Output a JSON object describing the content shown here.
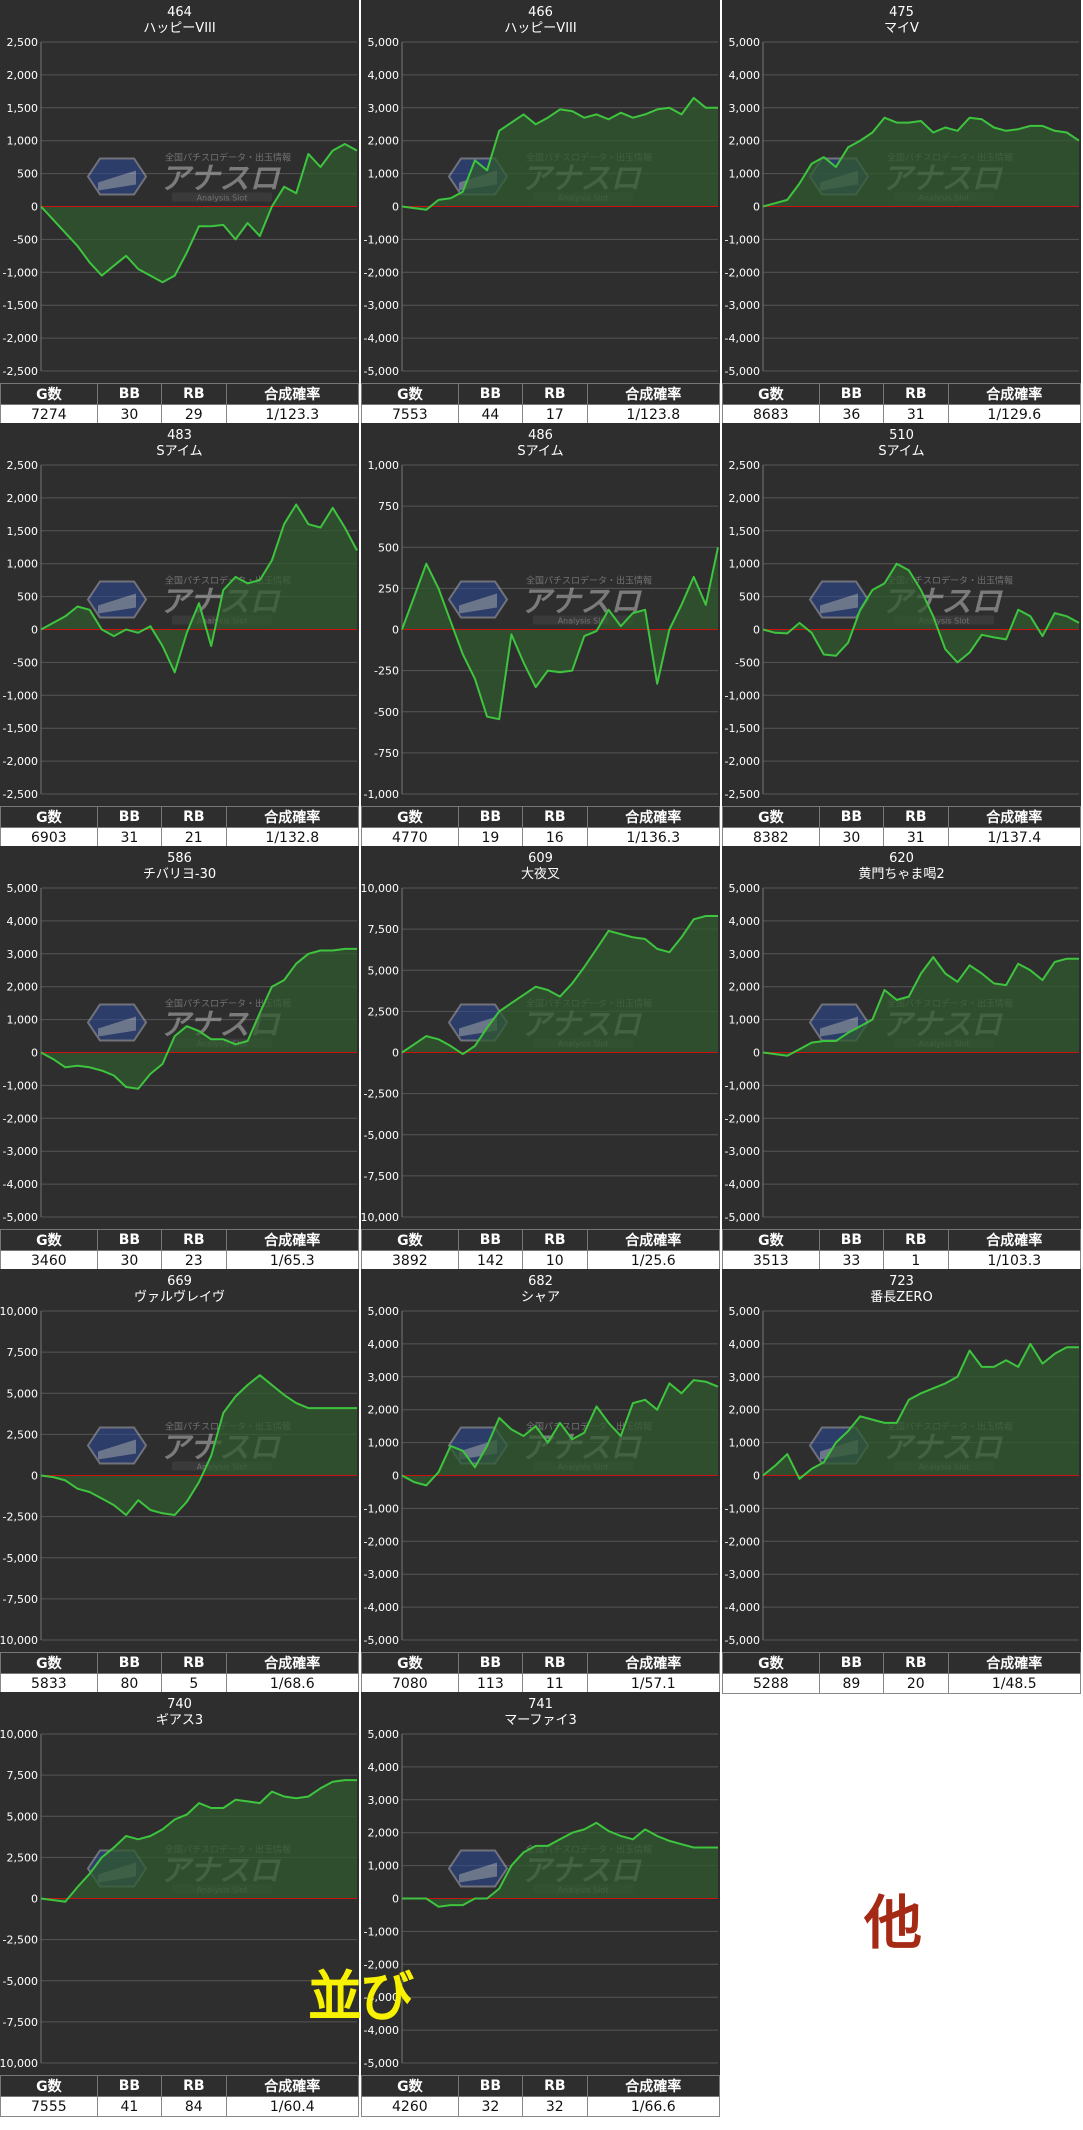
{
  "stats_headers": [
    "G数",
    "BB",
    "RB",
    "合成確率"
  ],
  "watermark": {
    "logo": "アナスロ",
    "tagline": "全国パチスロデータ・出玉情報",
    "sub": "Analysis Slot"
  },
  "annotations": {
    "narabi": "並び",
    "hoka": "他"
  },
  "colors": {
    "plot_bg": "#2e2e2e",
    "line": "#3ec43e",
    "fill": "#2f5a2f",
    "zero_line": "#cc1111",
    "grid": "#565656",
    "text": "#ffffff"
  },
  "chart_data": [
    {
      "type": "area",
      "number": "464",
      "name": "ハッピーVIII",
      "ylim": [
        -2500,
        2500
      ],
      "yticks": [
        2500,
        2000,
        1500,
        1000,
        500,
        0,
        -500,
        -1000,
        -1500,
        -2000,
        -2500
      ],
      "values": [
        0,
        -200,
        -400,
        -600,
        -850,
        -1050,
        -900,
        -750,
        -950,
        -1050,
        -1150,
        -1050,
        -700,
        -300,
        -300,
        -280,
        -500,
        -250,
        -450,
        0,
        300,
        200,
        800,
        600,
        850,
        950,
        850
      ],
      "stats": {
        "g": "7274",
        "bb": "30",
        "rb": "29",
        "rate": "1/123.3"
      }
    },
    {
      "type": "area",
      "number": "466",
      "name": "ハッピーVIII",
      "ylim": [
        -5000,
        5000
      ],
      "yticks": [
        5000,
        4000,
        3000,
        2000,
        1000,
        0,
        -1000,
        -2000,
        -3000,
        -4000,
        -5000
      ],
      "values": [
        0,
        -50,
        -100,
        200,
        250,
        450,
        1400,
        1100,
        2300,
        2550,
        2800,
        2500,
        2700,
        2950,
        2900,
        2700,
        2800,
        2650,
        2850,
        2700,
        2800,
        2950,
        3000,
        2800,
        3300,
        3000,
        3000
      ],
      "stats": {
        "g": "7553",
        "bb": "44",
        "rb": "17",
        "rate": "1/123.8"
      }
    },
    {
      "type": "area",
      "number": "475",
      "name": "マイV",
      "ylim": [
        -5000,
        5000
      ],
      "yticks": [
        5000,
        4000,
        3000,
        2000,
        1000,
        0,
        -1000,
        -2000,
        -3000,
        -4000,
        -5000
      ],
      "values": [
        0,
        100,
        200,
        700,
        1300,
        1500,
        1200,
        1800,
        2000,
        2250,
        2700,
        2550,
        2550,
        2600,
        2250,
        2400,
        2300,
        2700,
        2650,
        2400,
        2300,
        2350,
        2450,
        2450,
        2300,
        2250,
        2000
      ],
      "stats": {
        "g": "8683",
        "bb": "36",
        "rb": "31",
        "rate": "1/129.6"
      }
    },
    {
      "type": "area",
      "number": "483",
      "name": "Sアイム",
      "ylim": [
        -2500,
        2500
      ],
      "yticks": [
        2500,
        2000,
        1500,
        1000,
        500,
        0,
        -500,
        -1000,
        -1500,
        -2000,
        -2500
      ],
      "values": [
        0,
        100,
        200,
        350,
        300,
        0,
        -100,
        0,
        -50,
        50,
        -250,
        -650,
        -50,
        400,
        -250,
        600,
        800,
        700,
        750,
        1050,
        1600,
        1900,
        1600,
        1550,
        1850,
        1550,
        1200
      ],
      "stats": {
        "g": "6903",
        "bb": "31",
        "rb": "21",
        "rate": "1/132.8"
      }
    },
    {
      "type": "area",
      "number": "486",
      "name": "Sアイム",
      "ylim": [
        -1000,
        1000
      ],
      "yticks": [
        1000,
        750,
        500,
        250,
        0,
        -250,
        -500,
        -750,
        -1000
      ],
      "values": [
        0,
        200,
        400,
        250,
        50,
        -150,
        -300,
        -530,
        -545,
        -30,
        -200,
        -350,
        -250,
        -260,
        -250,
        -40,
        -10,
        120,
        20,
        100,
        120,
        -330,
        0,
        150,
        320,
        150,
        500
      ],
      "stats": {
        "g": "4770",
        "bb": "19",
        "rb": "16",
        "rate": "1/136.3"
      }
    },
    {
      "type": "area",
      "number": "510",
      "name": "Sアイム",
      "ylim": [
        -2500,
        2500
      ],
      "yticks": [
        2500,
        2000,
        1500,
        1000,
        500,
        0,
        -500,
        -1000,
        -1500,
        -2000,
        -2500
      ],
      "values": [
        0,
        -50,
        -60,
        100,
        -50,
        -380,
        -400,
        -200,
        300,
        600,
        700,
        1000,
        900,
        600,
        200,
        -300,
        -500,
        -350,
        -80,
        -120,
        -150,
        300,
        200,
        -100,
        250,
        200,
        100
      ],
      "stats": {
        "g": "8382",
        "bb": "30",
        "rb": "31",
        "rate": "1/137.4"
      }
    },
    {
      "type": "area",
      "number": "586",
      "name": "チバリヨ-30",
      "ylim": [
        -5000,
        5000
      ],
      "yticks": [
        5000,
        4000,
        3000,
        2000,
        1000,
        0,
        -1000,
        -2000,
        -3000,
        -4000,
        -5000
      ],
      "values": [
        0,
        -200,
        -450,
        -400,
        -450,
        -550,
        -700,
        -1050,
        -1100,
        -650,
        -350,
        500,
        800,
        650,
        400,
        400,
        250,
        350,
        1200,
        2000,
        2200,
        2700,
        3000,
        3100,
        3100,
        3150,
        3150
      ],
      "stats": {
        "g": "3460",
        "bb": "30",
        "rb": "23",
        "rate": "1/65.3"
      }
    },
    {
      "type": "area",
      "number": "609",
      "name": "大夜叉",
      "ylim": [
        -10000,
        10000
      ],
      "yticks": [
        10000,
        7500,
        5000,
        2500,
        0,
        -2500,
        -5000,
        -7500,
        -10000
      ],
      "values": [
        0,
        500,
        1000,
        800,
        400,
        -100,
        400,
        1500,
        2500,
        3000,
        3500,
        4000,
        3800,
        3400,
        4200,
        5200,
        6300,
        7400,
        7200,
        7000,
        6900,
        6300,
        6100,
        7000,
        8100,
        8300,
        8300
      ],
      "stats": {
        "g": "3892",
        "bb": "142",
        "rb": "10",
        "rate": "1/25.6"
      }
    },
    {
      "type": "area",
      "number": "620",
      "name": "黄門ちゃま喝2",
      "ylim": [
        -5000,
        5000
      ],
      "yticks": [
        5000,
        4000,
        3000,
        2000,
        1000,
        0,
        -1000,
        -2000,
        -3000,
        -4000,
        -5000
      ],
      "values": [
        0,
        -50,
        -100,
        100,
        300,
        350,
        350,
        600,
        800,
        1000,
        1900,
        1600,
        1700,
        2400,
        2900,
        2400,
        2150,
        2650,
        2400,
        2100,
        2050,
        2700,
        2500,
        2200,
        2750,
        2850,
        2850
      ],
      "stats": {
        "g": "3513",
        "bb": "33",
        "rb": "1",
        "rate": "1/103.3"
      }
    },
    {
      "type": "area",
      "number": "669",
      "name": "ヴァルヴレイヴ",
      "ylim": [
        -10000,
        10000
      ],
      "yticks": [
        10000,
        7500,
        5000,
        2500,
        0,
        -2500,
        -5000,
        -7500,
        -10000
      ],
      "values": [
        0,
        -100,
        -300,
        -800,
        -1000,
        -1400,
        -1800,
        -2400,
        -1500,
        -2100,
        -2300,
        -2400,
        -1600,
        -400,
        1200,
        3800,
        4800,
        5500,
        6100,
        5500,
        4900,
        4400,
        4100,
        4100,
        4100,
        4100,
        4100
      ],
      "stats": {
        "g": "5833",
        "bb": "80",
        "rb": "5",
        "rate": "1/68.6"
      }
    },
    {
      "type": "area",
      "number": "682",
      "name": "シャア",
      "ylim": [
        -5000,
        5000
      ],
      "yticks": [
        5000,
        4000,
        3000,
        2000,
        1000,
        0,
        -1000,
        -2000,
        -3000,
        -4000,
        -5000
      ],
      "values": [
        0,
        -200,
        -300,
        100,
        900,
        750,
        250,
        900,
        1750,
        1400,
        1200,
        1500,
        1000,
        1600,
        1100,
        1300,
        2100,
        1600,
        1200,
        2200,
        2300,
        2000,
        2800,
        2500,
        2900,
        2850,
        2700
      ],
      "stats": {
        "g": "7080",
        "bb": "113",
        "rb": "11",
        "rate": "1/57.1"
      }
    },
    {
      "type": "area",
      "number": "723",
      "name": "番長ZERO",
      "ylim": [
        -5000,
        5000
      ],
      "yticks": [
        5000,
        4000,
        3000,
        2000,
        1000,
        0,
        -1000,
        -2000,
        -3000,
        -4000,
        -5000
      ],
      "values": [
        0,
        300,
        650,
        -100,
        200,
        400,
        1000,
        1350,
        1800,
        1700,
        1600,
        1600,
        2300,
        2500,
        2650,
        2800,
        3000,
        3800,
        3300,
        3300,
        3500,
        3300,
        4000,
        3400,
        3700,
        3900,
        3900
      ],
      "stats": {
        "g": "5288",
        "bb": "89",
        "rb": "20",
        "rate": "1/48.5"
      }
    },
    {
      "type": "area",
      "number": "740",
      "name": "ギアス3",
      "ylim": [
        -10000,
        10000
      ],
      "yticks": [
        10000,
        7500,
        5000,
        2500,
        0,
        -2500,
        -5000,
        -7500,
        -10000
      ],
      "values": [
        0,
        -100,
        -200,
        700,
        1500,
        2500,
        3100,
        3800,
        3600,
        3800,
        4200,
        4800,
        5100,
        5800,
        5500,
        5500,
        6000,
        5900,
        5800,
        6500,
        6200,
        6100,
        6200,
        6700,
        7100,
        7200,
        7200
      ],
      "stats": {
        "g": "7555",
        "bb": "41",
        "rb": "84",
        "rate": "1/60.4"
      }
    },
    {
      "type": "area",
      "number": "741",
      "name": "マーファイ3",
      "ylim": [
        -5000,
        5000
      ],
      "yticks": [
        5000,
        4000,
        3000,
        2000,
        1000,
        0,
        -1000,
        -2000,
        -3000,
        -4000,
        -5000
      ],
      "values": [
        0,
        0,
        0,
        -250,
        -200,
        -200,
        0,
        0,
        300,
        1000,
        1400,
        1600,
        1600,
        1800,
        2000,
        2100,
        2300,
        2050,
        1900,
        1800,
        2100,
        1900,
        1750,
        1650,
        1550,
        1550,
        1550
      ],
      "stats": {
        "g": "4260",
        "bb": "32",
        "rb": "32",
        "rate": "1/66.6"
      }
    }
  ]
}
